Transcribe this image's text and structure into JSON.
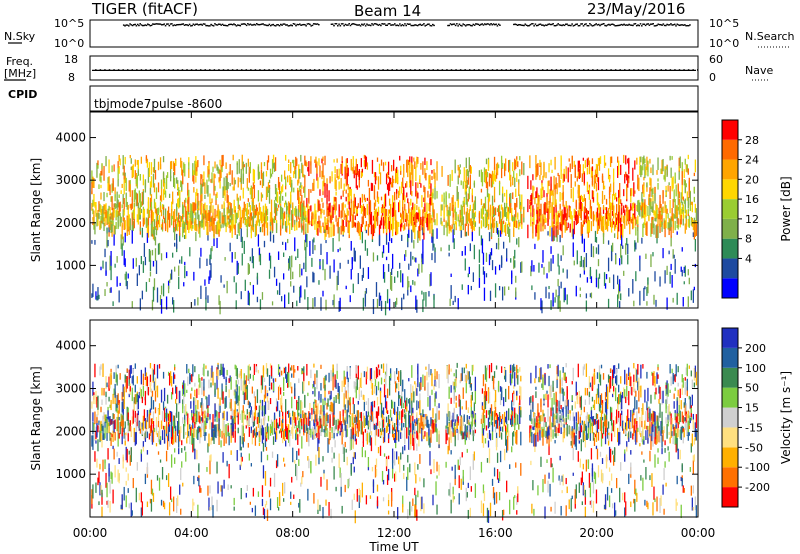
{
  "header": {
    "radar": "TIGER (fitACF)",
    "beam": "Beam 14",
    "date": "23/May/2016"
  },
  "noise_panel": {
    "left_label": "N.Sky",
    "right_label": "N.Search",
    "left_ticks": [
      "10^5",
      "10^0"
    ],
    "right_ticks": [
      "10^5",
      "10^0"
    ]
  },
  "freq_panel": {
    "left_label_1": "Freq.",
    "left_label_2": "[MHz]",
    "right_label": "Nave",
    "left_ticks": [
      "18",
      "8"
    ],
    "right_ticks": [
      "60",
      "0"
    ],
    "left_range": [
      8,
      18
    ],
    "right_range": [
      0,
      60
    ],
    "freq_level_mhz": 12,
    "nave_level": 25
  },
  "cpid": {
    "label": "CPID",
    "value": "tbjmode7pulse -8600"
  },
  "colors": {
    "frame": "#000000",
    "power_scale": [
      "#0000ff",
      "#1e4aa0",
      "#2e8b57",
      "#7fb04a",
      "#9acd32",
      "#ffd700",
      "#ffa500",
      "#ff6a00",
      "#ff0000"
    ],
    "velocity_scale": [
      "#2030c0",
      "#2060a0",
      "#3a8a50",
      "#7ccc40",
      "#d0d0d0",
      "#ffe080",
      "#ffb000",
      "#ff7000",
      "#ff0000"
    ]
  },
  "chart_data": [
    {
      "type": "heatmap",
      "panel": "power",
      "ylabel": "Slant Range [km]",
      "ylim": [
        0,
        4600
      ],
      "y_ticks": [
        "4000",
        "3000",
        "2000",
        "1000"
      ],
      "xlim_hours": [
        0,
        24
      ],
      "colorbar": {
        "label": "Power [dB]",
        "range": [
          0,
          32
        ],
        "ticks": [
          "28",
          "24",
          "20",
          "16",
          "12",
          "8",
          "4"
        ],
        "tick_values": [
          28,
          24,
          20,
          16,
          12,
          8,
          4
        ]
      },
      "scatter_band_km": [
        1900,
        3600
      ],
      "dense_band_km": [
        1950,
        2500
      ]
    },
    {
      "type": "heatmap",
      "panel": "velocity",
      "ylabel": "Slant Range [km]",
      "ylim": [
        0,
        4600
      ],
      "y_ticks": [
        "4000",
        "3000",
        "2000",
        "1000"
      ],
      "xlim_hours": [
        0,
        24
      ],
      "colorbar": {
        "label": "Velocity [m s⁻¹]",
        "ticks": [
          "200",
          "100",
          "50",
          "15",
          "-15",
          "-50",
          "-100",
          "-200"
        ]
      },
      "scatter_band_km": [
        1900,
        3600
      ],
      "dense_band_km": [
        1950,
        2500
      ]
    }
  ],
  "x_axis": {
    "label": "Time UT",
    "ticks": [
      "00:00",
      "04:00",
      "08:00",
      "12:00",
      "16:00",
      "20:00",
      "00:00"
    ],
    "tick_hours": [
      0,
      4,
      8,
      12,
      16,
      20,
      24
    ]
  }
}
